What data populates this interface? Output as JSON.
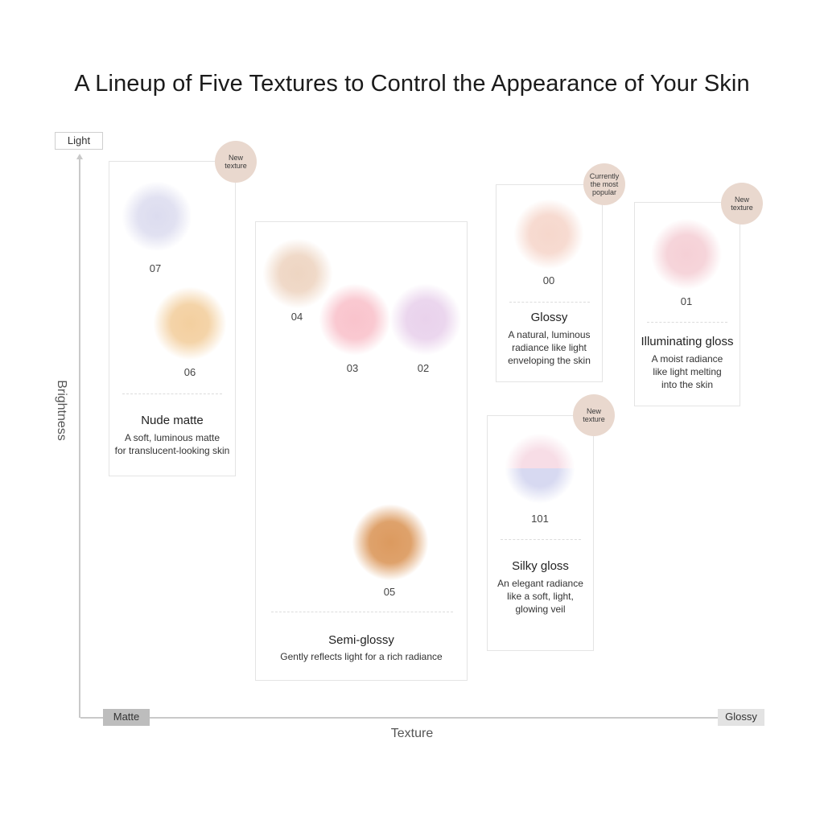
{
  "title": "A Lineup of Five Textures to Control the Appearance of Your Skin",
  "axes": {
    "y_label": "Brightness",
    "y_top": "Light",
    "x_label": "Texture",
    "x_left": "Matte",
    "x_right": "Glossy"
  },
  "colors": {
    "badge": "#e9d8ce",
    "axis": "#c9c9c9",
    "matte_chip": "#bdbdbd",
    "glossy_chip": "#e3e3e3"
  },
  "panels": [
    {
      "name": "Nude matte",
      "desc_lines": [
        "A soft, luminous matte",
        "for translucent-looking skin"
      ],
      "badge": "New texture"
    },
    {
      "name": "Semi-glossy",
      "desc_lines": [
        "Gently reflects light for a rich radiance"
      ]
    },
    {
      "name": "Glossy",
      "desc_lines": [
        "A natural, luminous",
        "radiance like light",
        "enveloping the skin"
      ],
      "badge": "Currently the most popular"
    },
    {
      "name": "Illuminating gloss",
      "desc_lines": [
        "A moist radiance",
        "like light melting",
        "into the skin"
      ],
      "badge": "New texture"
    },
    {
      "name": "Silky gloss",
      "desc_lines": [
        "An elegant radiance",
        "like a soft, light,",
        "glowing veil"
      ],
      "badge": "New texture"
    }
  ],
  "shades": {
    "s07": {
      "label": "07",
      "color": "#dcdcef"
    },
    "s06": {
      "label": "06",
      "color": "#f3cf9f"
    },
    "s04": {
      "label": "04",
      "color": "#eed5c2"
    },
    "s03": {
      "label": "03",
      "color": "#f9c3cc"
    },
    "s02": {
      "label": "02",
      "color": "#e9d2ec"
    },
    "s05": {
      "label": "05",
      "color": "#dc9a5f"
    },
    "s00": {
      "label": "00",
      "color": "#f6d7cc"
    },
    "s01": {
      "label": "01",
      "color": "#f5d0d6"
    },
    "s101": {
      "label": "101",
      "color_top": "#f7dde6",
      "color_bottom": "#d7d9f1"
    }
  }
}
